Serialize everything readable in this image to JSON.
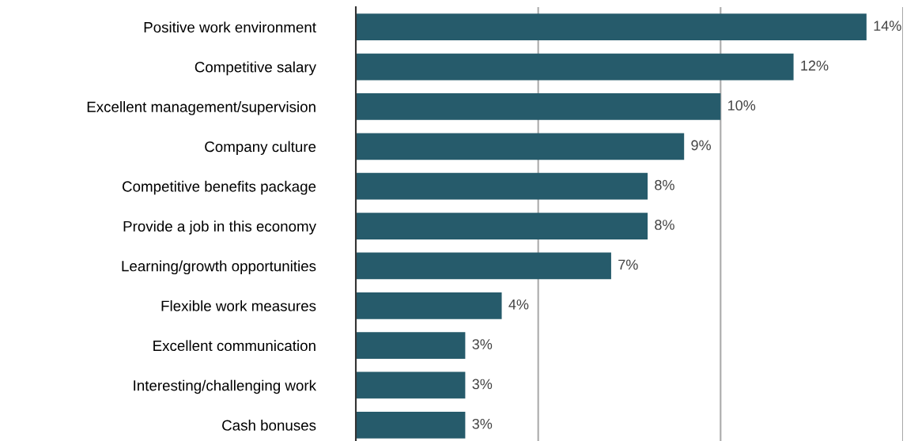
{
  "chart_data": {
    "type": "bar",
    "orientation": "horizontal",
    "categories": [
      "Positive work environment",
      "Competitive salary",
      "Excellent management/supervision",
      "Company culture",
      "Competitive benefits package",
      "Provide a job in this economy",
      "Learning/growth opportunities",
      "Flexible work measures",
      "Excellent communication",
      "Interesting/challenging work",
      "Cash bonuses"
    ],
    "values": [
      14,
      12,
      10,
      9,
      8,
      8,
      7,
      4,
      3,
      3,
      3
    ],
    "value_labels": [
      "14%",
      "12%",
      "10%",
      "9%",
      "8%",
      "8%",
      "7%",
      "4%",
      "3%",
      "3%",
      "3%"
    ],
    "color": "#265b6b",
    "xlim": [
      0,
      15
    ],
    "xticks": [
      {
        "value": 0,
        "label": null
      },
      {
        "value": 5,
        "label": null
      },
      {
        "value": 10,
        "label": null
      },
      {
        "value": 15,
        "label": null
      }
    ],
    "grid": "x",
    "tick_labels": "y"
  }
}
